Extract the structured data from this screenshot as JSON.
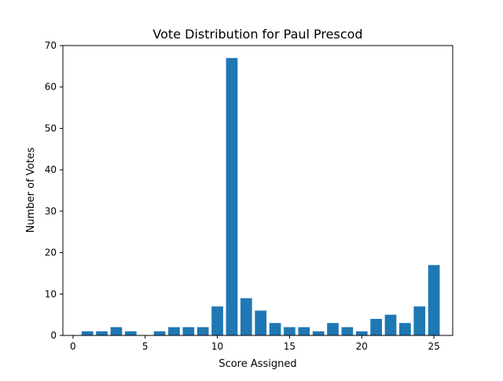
{
  "chart_data": {
    "type": "bar",
    "title": "Vote Distribution for Paul Prescod",
    "xlabel": "Score Assigned",
    "ylabel": "Number of Votes",
    "x": [
      1,
      2,
      3,
      4,
      5,
      6,
      7,
      8,
      9,
      10,
      11,
      12,
      13,
      14,
      15,
      16,
      17,
      18,
      19,
      20,
      21,
      22,
      23,
      24,
      25
    ],
    "values": [
      1,
      1,
      2,
      1,
      0,
      1,
      2,
      2,
      2,
      7,
      67,
      9,
      6,
      3,
      2,
      2,
      1,
      3,
      2,
      1,
      4,
      5,
      3,
      7,
      17
    ],
    "xlim": [
      -0.7,
      26.3
    ],
    "ylim": [
      0,
      70
    ],
    "xticks": [
      0,
      5,
      10,
      15,
      20,
      25
    ],
    "yticks": [
      0,
      10,
      20,
      30,
      40,
      50,
      60,
      70
    ],
    "bar_color": "#1f77b4",
    "grid": false
  }
}
